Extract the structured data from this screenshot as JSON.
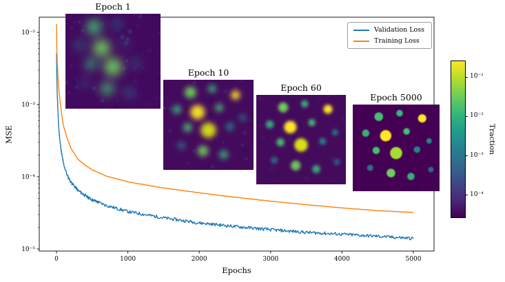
{
  "chart_data": {
    "type": "line",
    "title": "",
    "xlabel": "Epochs",
    "ylabel": "MSE",
    "x_ticks": [
      0,
      1000,
      2000,
      3000,
      4000,
      5000
    ],
    "y_ticks": [
      "10⁻²",
      "10⁻³",
      "10⁻⁴",
      "10⁻⁵"
    ],
    "y_tick_values": [
      0.01,
      0.001,
      0.0001,
      1e-05
    ],
    "xlim": [
      0,
      5000
    ],
    "ylim": [
      9.4e-06,
      0.0162
    ],
    "y_scale": "log",
    "grid": false,
    "legend": {
      "position": "upper right",
      "entries": [
        {
          "label": "Validation Loss",
          "color": "#1f77b4"
        },
        {
          "label": "Training Loss",
          "color": "#ff7f0e"
        }
      ]
    },
    "series": [
      {
        "name": "Validation Loss",
        "color": "#1f77b4",
        "noise": 0.05,
        "anchors": {
          "x": [
            0,
            5,
            10,
            20,
            30,
            50,
            75,
            100,
            150,
            200,
            300,
            400,
            500,
            700,
            1000,
            1500,
            2000,
            2500,
            3000,
            3500,
            4000,
            4500,
            5000
          ],
          "y": [
            0.005,
            0.0025,
            0.0015,
            0.0008,
            0.0005,
            0.0003,
            0.0002,
            0.00015,
            0.000105,
            8.5e-05,
            6.5e-05,
            5.5e-05,
            4.8e-05,
            4e-05,
            3.3e-05,
            2.7e-05,
            2.3e-05,
            2.05e-05,
            1.85e-05,
            1.7e-05,
            1.6e-05,
            1.5e-05,
            1.4e-05
          ]
        }
      },
      {
        "name": "Training Loss",
        "color": "#ff7f0e",
        "noise": 0.006,
        "anchors": {
          "x": [
            0,
            5,
            10,
            20,
            30,
            50,
            75,
            100,
            150,
            200,
            300,
            400,
            500,
            700,
            1000,
            1500,
            2000,
            2500,
            3000,
            3500,
            4000,
            4500,
            5000
          ],
          "y": [
            0.013,
            0.006,
            0.004,
            0.0025,
            0.0018,
            0.0011,
            0.0007,
            0.0005,
            0.00034,
            0.00025,
            0.000175,
            0.000145,
            0.000125,
            0.000102,
            8.5e-05,
            7e-05,
            6e-05,
            5.2e-05,
            4.6e-05,
            4.1e-05,
            3.7e-05,
            3.4e-05,
            3.2e-05
          ]
        }
      }
    ]
  },
  "insets": [
    {
      "title": "Epoch 1",
      "epoch": 1,
      "blur": 5,
      "noise": 0.5,
      "bg": "#420a5e",
      "blobs": [
        [
          0.3,
          0.14,
          0.08,
          "#44bf70",
          0.9
        ],
        [
          0.54,
          0.11,
          0.05,
          "#26828e",
          0.65
        ],
        [
          0.15,
          0.33,
          0.055,
          "#26828e",
          0.6
        ],
        [
          0.38,
          0.36,
          0.09,
          "#6ece58",
          0.95
        ],
        [
          0.62,
          0.31,
          0.05,
          "#31688e",
          0.5
        ],
        [
          0.27,
          0.53,
          0.06,
          "#35b779",
          0.85
        ],
        [
          0.5,
          0.56,
          0.095,
          "#6ece58",
          0.95
        ],
        [
          0.74,
          0.52,
          0.05,
          "#26828e",
          0.55
        ],
        [
          0.2,
          0.73,
          0.05,
          "#31688e",
          0.5
        ],
        [
          0.44,
          0.79,
          0.07,
          "#44bf70",
          0.85
        ],
        [
          0.67,
          0.83,
          0.055,
          "#26828e",
          0.6
        ]
      ]
    },
    {
      "title": "Epoch 10",
      "epoch": 10,
      "blur": 3,
      "noise": 0.35,
      "bg": "#440a5c",
      "blobs": [
        [
          0.3,
          0.14,
          0.065,
          "#6ece58",
          0.95
        ],
        [
          0.54,
          0.1,
          0.045,
          "#35b779",
          0.9
        ],
        [
          0.8,
          0.17,
          0.05,
          "#fde725",
          0.95
        ],
        [
          0.15,
          0.33,
          0.05,
          "#35b779",
          0.85
        ],
        [
          0.38,
          0.36,
          0.08,
          "#fde725",
          0.95
        ],
        [
          0.62,
          0.31,
          0.045,
          "#44bf70",
          0.9
        ],
        [
          0.88,
          0.42,
          0.04,
          "#26828e",
          0.75
        ],
        [
          0.27,
          0.53,
          0.05,
          "#44bf70",
          0.9
        ],
        [
          0.5,
          0.56,
          0.085,
          "#d8e219",
          0.95
        ],
        [
          0.74,
          0.52,
          0.045,
          "#21918c",
          0.8
        ],
        [
          0.2,
          0.73,
          0.045,
          "#26828e",
          0.7
        ],
        [
          0.44,
          0.79,
          0.06,
          "#6ece58",
          0.9
        ],
        [
          0.67,
          0.83,
          0.05,
          "#35b779",
          0.85
        ]
      ]
    },
    {
      "title": "Epoch 60",
      "epoch": 60,
      "blur": 1.8,
      "noise": 0.2,
      "bg": "#440a5c",
      "blobs": [
        [
          0.3,
          0.14,
          0.055,
          "#6ece58",
          1.0
        ],
        [
          0.54,
          0.1,
          0.04,
          "#35b779",
          0.95
        ],
        [
          0.8,
          0.16,
          0.05,
          "#fde725",
          1.0
        ],
        [
          0.15,
          0.33,
          0.045,
          "#35b779",
          0.9
        ],
        [
          0.38,
          0.36,
          0.07,
          "#fde725",
          1.0
        ],
        [
          0.62,
          0.31,
          0.04,
          "#44bf70",
          0.95
        ],
        [
          0.88,
          0.42,
          0.035,
          "#21918c",
          0.8
        ],
        [
          0.27,
          0.53,
          0.045,
          "#44bf70",
          0.95
        ],
        [
          0.5,
          0.56,
          0.075,
          "#d8e219",
          1.0
        ],
        [
          0.74,
          0.52,
          0.04,
          "#21918c",
          0.85
        ],
        [
          0.2,
          0.73,
          0.04,
          "#26828e",
          0.75
        ],
        [
          0.44,
          0.79,
          0.055,
          "#6ece58",
          0.95
        ],
        [
          0.67,
          0.83,
          0.045,
          "#35b779",
          0.9
        ],
        [
          0.9,
          0.75,
          0.035,
          "#26828e",
          0.7
        ]
      ]
    },
    {
      "title": "Epoch 5000",
      "epoch": 5000,
      "blur": 0.7,
      "noise": 0.08,
      "bg": "#440154",
      "blobs": [
        [
          0.3,
          0.14,
          0.05,
          "#44bf70",
          1.0
        ],
        [
          0.54,
          0.1,
          0.038,
          "#35b779",
          1.0
        ],
        [
          0.8,
          0.16,
          0.048,
          "#fde725",
          1.0
        ],
        [
          0.15,
          0.33,
          0.042,
          "#35b779",
          0.95
        ],
        [
          0.38,
          0.36,
          0.065,
          "#fde725",
          1.0
        ],
        [
          0.62,
          0.31,
          0.038,
          "#44bf70",
          1.0
        ],
        [
          0.88,
          0.42,
          0.032,
          "#21918c",
          0.9
        ],
        [
          0.27,
          0.53,
          0.042,
          "#44bf70",
          1.0
        ],
        [
          0.5,
          0.56,
          0.07,
          "#a5db36",
          1.0
        ],
        [
          0.74,
          0.52,
          0.038,
          "#21918c",
          0.9
        ],
        [
          0.2,
          0.73,
          0.036,
          "#26828e",
          0.85
        ],
        [
          0.44,
          0.79,
          0.05,
          "#6ece58",
          1.0
        ],
        [
          0.67,
          0.83,
          0.042,
          "#35b779",
          0.95
        ],
        [
          0.9,
          0.75,
          0.032,
          "#26828e",
          0.8
        ]
      ]
    }
  ],
  "colorbar": {
    "label": "Traction",
    "scale": "log",
    "ticks": [
      "10⁻¹",
      "10⁻²",
      "10⁻³",
      "10⁻⁴"
    ],
    "colors": [
      "#fde725",
      "#b5de2b",
      "#6ece58",
      "#35b779",
      "#1f9e89",
      "#26828e",
      "#31688e",
      "#3e4989",
      "#482878",
      "#440154"
    ]
  }
}
